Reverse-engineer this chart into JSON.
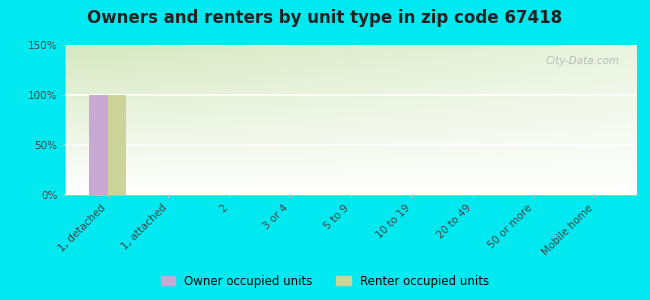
{
  "title": "Owners and renters by unit type in zip code 67418",
  "categories": [
    "1, detached",
    "1, attached",
    "2",
    "3 or 4",
    "5 to 9",
    "10 to 19",
    "20 to 49",
    "50 or more",
    "Mobile home"
  ],
  "owner_values": [
    100,
    0,
    0,
    0,
    0,
    0,
    0,
    0,
    0
  ],
  "renter_values": [
    100,
    0,
    0,
    0,
    0,
    0,
    0,
    0,
    0
  ],
  "owner_color": "#c9a8d4",
  "renter_color": "#ccd49a",
  "ylim": [
    0,
    150
  ],
  "yticks": [
    0,
    50,
    100,
    150
  ],
  "ytick_labels": [
    "0%",
    "50%",
    "100%",
    "150%"
  ],
  "background_outer": "#00e8f0",
  "background_plot_top_left": "#d6e8c0",
  "background_plot_bottom_right": "#f0f7e8",
  "background_plot_white": "#f8fcf4",
  "title_fontsize": 12,
  "bar_width": 0.3,
  "watermark": "City-Data.com",
  "legend_owner": "Owner occupied units",
  "legend_renter": "Renter occupied units"
}
